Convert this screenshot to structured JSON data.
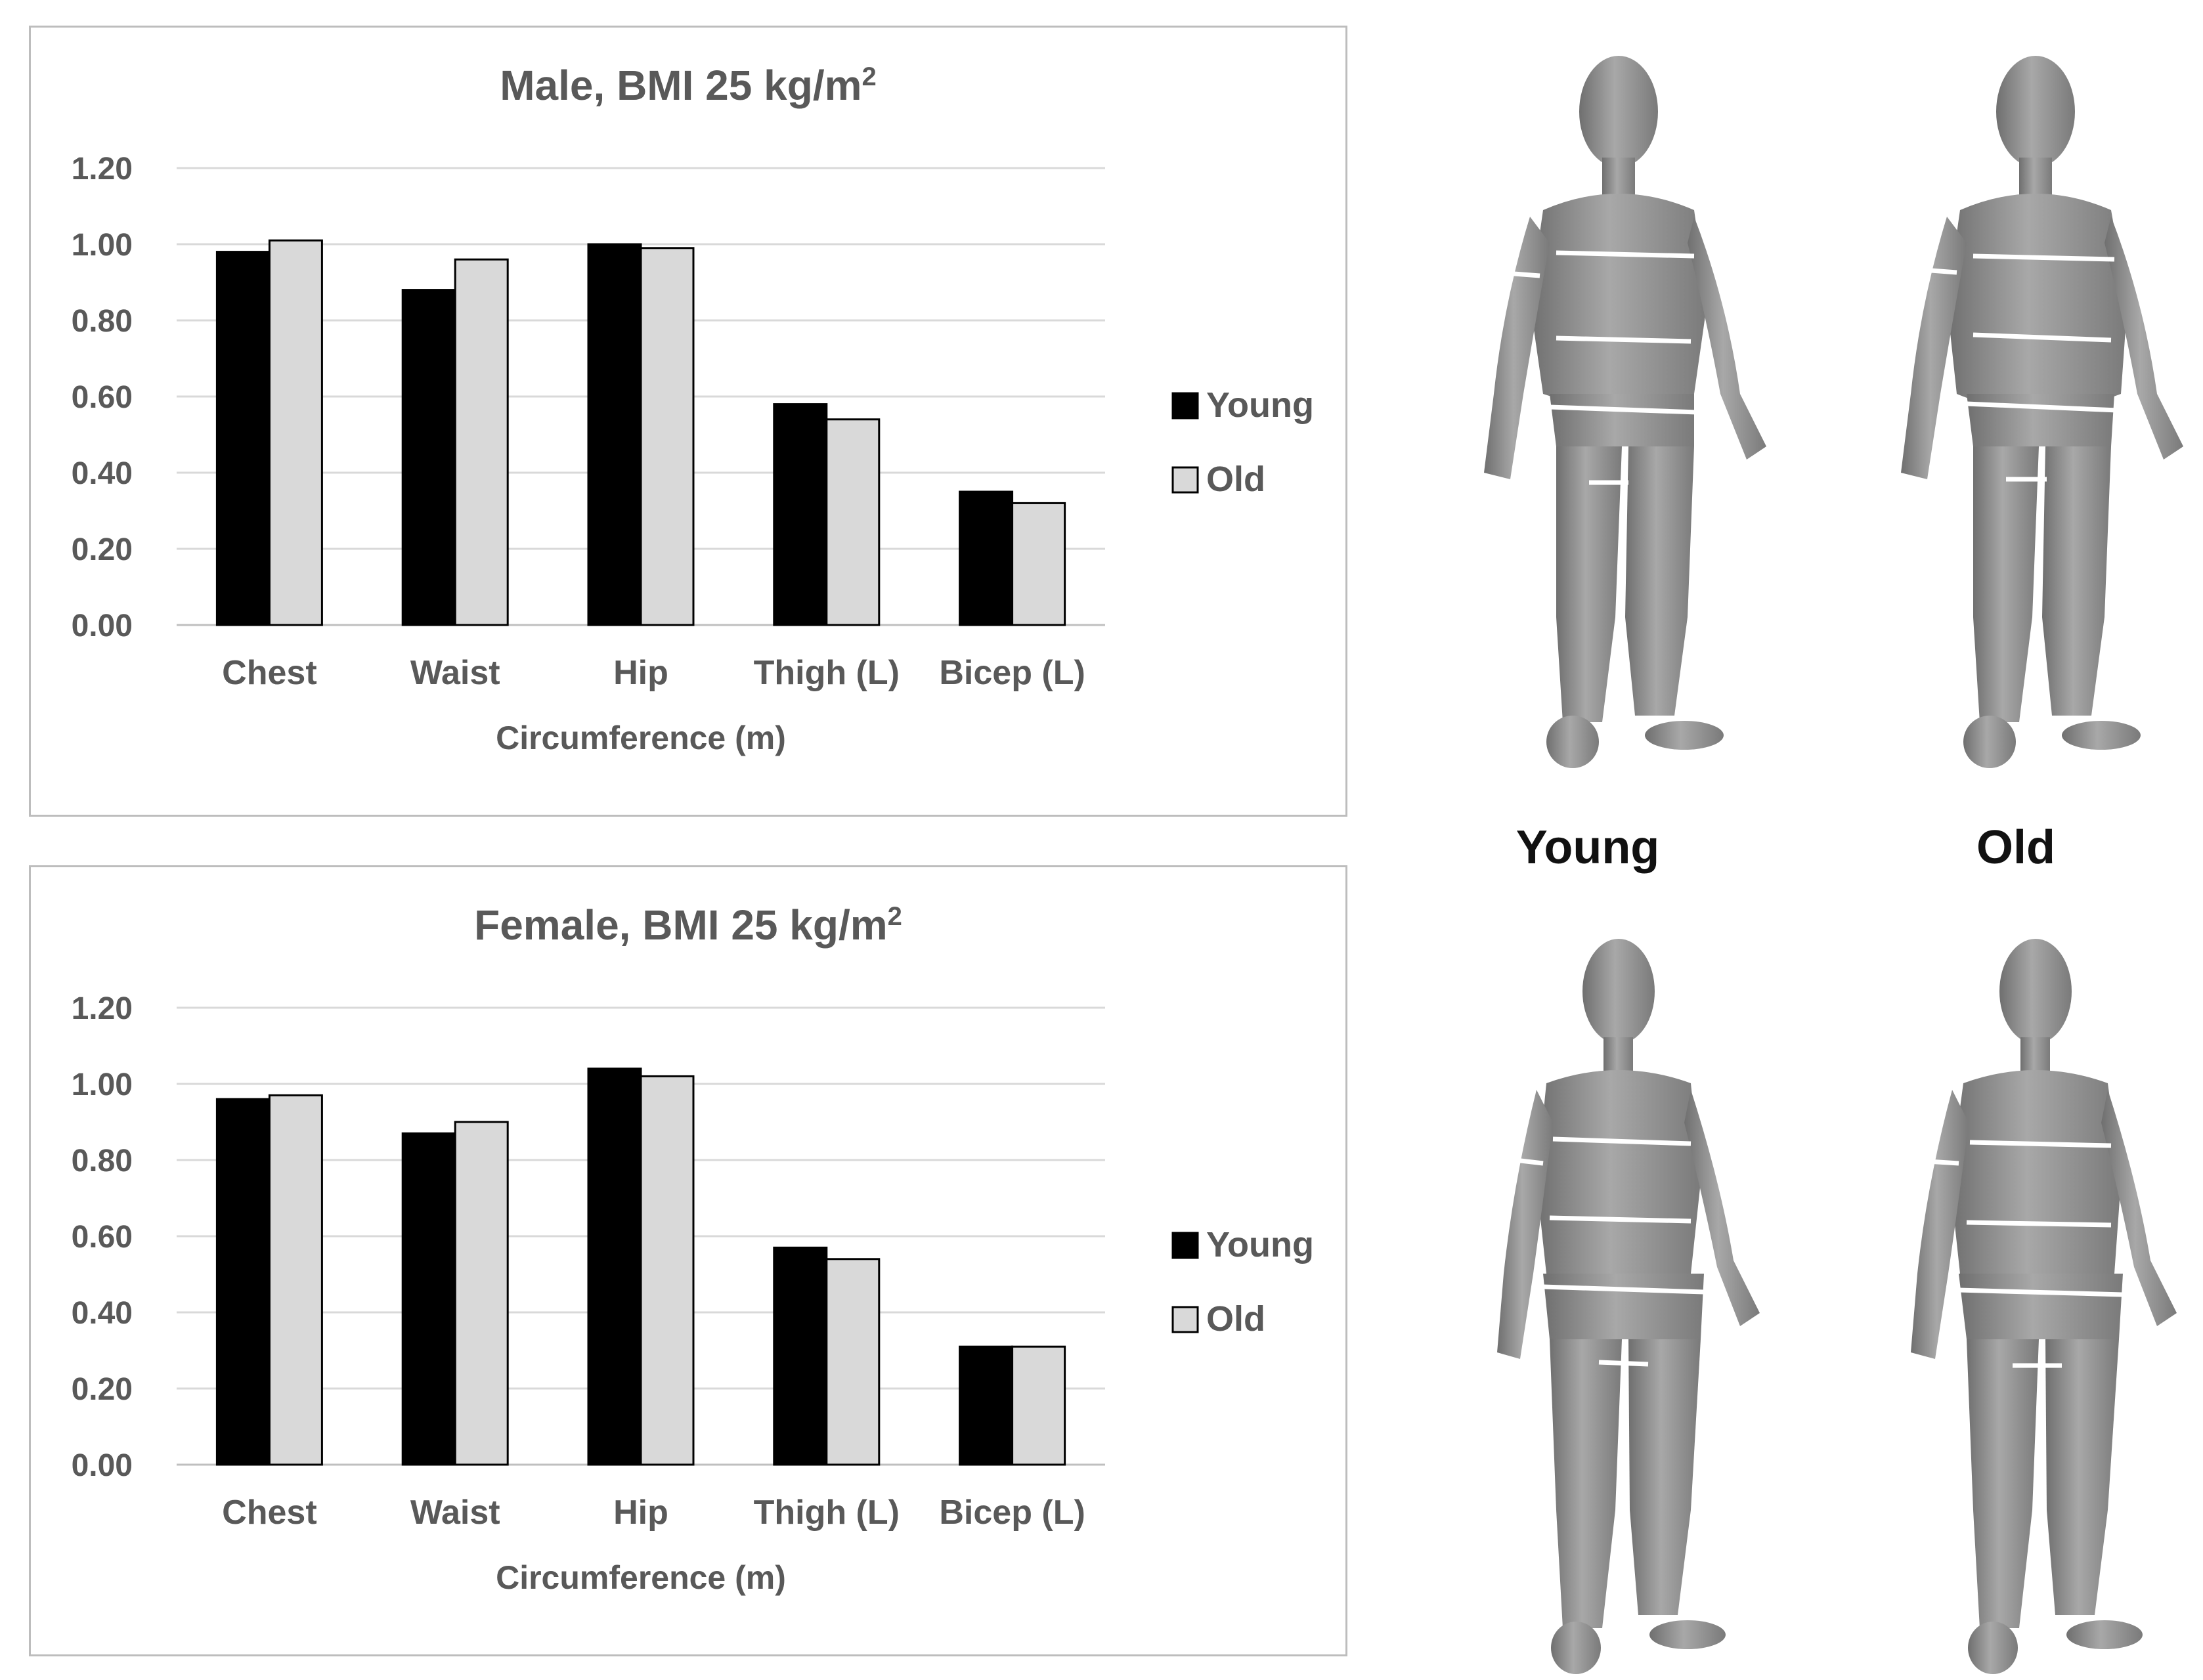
{
  "chart_data": [
    {
      "type": "bar",
      "title": "Male, BMI 25 kg/m",
      "title_superscript": "2",
      "categories": [
        "Chest",
        "Waist",
        "Hip",
        "Thigh (L)",
        "Bicep (L)"
      ],
      "series": [
        {
          "name": "Young",
          "color": "#000000",
          "values": [
            0.98,
            0.88,
            1.0,
            0.58,
            0.35
          ]
        },
        {
          "name": "Old",
          "color": "#d9d9d9",
          "values": [
            1.01,
            0.96,
            0.99,
            0.54,
            0.32
          ]
        }
      ],
      "ylim": [
        0,
        1.2
      ],
      "yticks": [
        "0.00",
        "0.20",
        "0.40",
        "0.60",
        "0.80",
        "1.00",
        "1.20"
      ],
      "xlabel": "Circumference (m)",
      "ylabel": "",
      "grid": true,
      "legend": "right"
    },
    {
      "type": "bar",
      "title": "Female, BMI 25 kg/m",
      "title_superscript": "2",
      "categories": [
        "Chest",
        "Waist",
        "Hip",
        "Thigh (L)",
        "Bicep (L)"
      ],
      "series": [
        {
          "name": "Young",
          "color": "#000000",
          "values": [
            0.96,
            0.87,
            1.04,
            0.57,
            0.31
          ]
        },
        {
          "name": "Old",
          "color": "#d9d9d9",
          "values": [
            0.97,
            0.9,
            1.02,
            0.54,
            0.31
          ]
        }
      ],
      "ylim": [
        0,
        1.2
      ],
      "yticks": [
        "0.00",
        "0.20",
        "0.40",
        "0.60",
        "0.80",
        "1.00",
        "1.20"
      ],
      "xlabel": "Circumference (m)",
      "ylabel": "",
      "grid": true,
      "legend": "right"
    }
  ],
  "figure": {
    "young_label": "Young",
    "old_label": "Old",
    "body_color": "#9a9a9a",
    "measure_line_color": "#ffffff"
  }
}
